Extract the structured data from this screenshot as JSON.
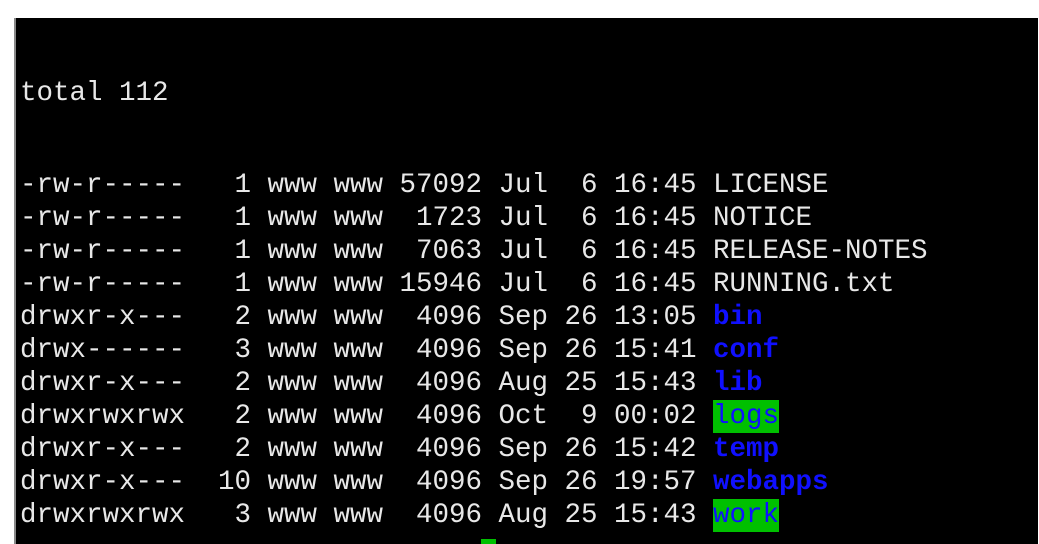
{
  "terminal": {
    "total_line": "total 112",
    "colors": {
      "background": "#000000",
      "text": "#e8e8e8",
      "directory": "#1010ff",
      "other_writable_bg": "#00c000"
    },
    "entries": [
      {
        "perms": "-rw-r-----",
        "links": "1",
        "owner": "www",
        "group": "www",
        "size": "57092",
        "month": "Jul",
        "day": "6",
        "time": "16:45",
        "name": "LICENSE",
        "type": "file"
      },
      {
        "perms": "-rw-r-----",
        "links": "1",
        "owner": "www",
        "group": "www",
        "size": "1723",
        "month": "Jul",
        "day": "6",
        "time": "16:45",
        "name": "NOTICE",
        "type": "file"
      },
      {
        "perms": "-rw-r-----",
        "links": "1",
        "owner": "www",
        "group": "www",
        "size": "7063",
        "month": "Jul",
        "day": "6",
        "time": "16:45",
        "name": "RELEASE-NOTES",
        "type": "file"
      },
      {
        "perms": "-rw-r-----",
        "links": "1",
        "owner": "www",
        "group": "www",
        "size": "15946",
        "month": "Jul",
        "day": "6",
        "time": "16:45",
        "name": "RUNNING.txt",
        "type": "file"
      },
      {
        "perms": "drwxr-x---",
        "links": "2",
        "owner": "www",
        "group": "www",
        "size": "4096",
        "month": "Sep",
        "day": "26",
        "time": "13:05",
        "name": "bin",
        "type": "dir"
      },
      {
        "perms": "drwx------",
        "links": "3",
        "owner": "www",
        "group": "www",
        "size": "4096",
        "month": "Sep",
        "day": "26",
        "time": "15:41",
        "name": "conf",
        "type": "dir"
      },
      {
        "perms": "drwxr-x---",
        "links": "2",
        "owner": "www",
        "group": "www",
        "size": "4096",
        "month": "Aug",
        "day": "25",
        "time": "15:43",
        "name": "lib",
        "type": "dir"
      },
      {
        "perms": "drwxrwxrwx",
        "links": "2",
        "owner": "www",
        "group": "www",
        "size": "4096",
        "month": "Oct",
        "day": "9",
        "time": "00:02",
        "name": "logs",
        "type": "ow"
      },
      {
        "perms": "drwxr-x---",
        "links": "2",
        "owner": "www",
        "group": "www",
        "size": "4096",
        "month": "Sep",
        "day": "26",
        "time": "15:42",
        "name": "temp",
        "type": "dir"
      },
      {
        "perms": "drwxr-x---",
        "links": "10",
        "owner": "www",
        "group": "www",
        "size": "4096",
        "month": "Sep",
        "day": "26",
        "time": "19:57",
        "name": "webapps",
        "type": "dir"
      },
      {
        "perms": "drwxrwxrwx",
        "links": "3",
        "owner": "www",
        "group": "www",
        "size": "4096",
        "month": "Aug",
        "day": "25",
        "time": "15:43",
        "name": "work",
        "type": "ow"
      }
    ]
  }
}
